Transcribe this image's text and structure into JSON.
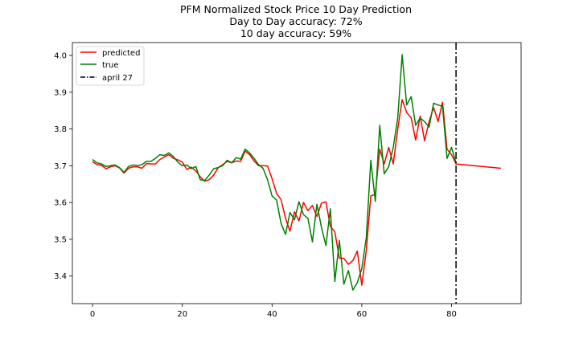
{
  "chart_data": {
    "type": "line",
    "title_lines": [
      "PFM Normalized Stock Price 10 Day Prediction",
      "Day to Day accuracy: 72%",
      "10 day accuracy: 59%"
    ],
    "xlabel": "",
    "ylabel": "",
    "xlim": [
      -4.5,
      95.5
    ],
    "ylim": [
      3.325,
      4.035
    ],
    "xticks": [
      0,
      20,
      40,
      60,
      80
    ],
    "yticks": [
      3.4,
      3.5,
      3.6,
      3.7,
      3.8,
      3.9,
      4.0
    ],
    "ytick_labels": [
      "3.4",
      "3.5",
      "3.6",
      "3.7",
      "3.8",
      "3.9",
      "4.0"
    ],
    "grid": false,
    "legend_position": "upper-left",
    "series": [
      {
        "name": "predicted",
        "color": "#ff0000",
        "style": "solid",
        "x": [
          0,
          1,
          2,
          3,
          4,
          5,
          6,
          7,
          8,
          9,
          10,
          11,
          12,
          13,
          14,
          15,
          16,
          17,
          18,
          19,
          20,
          21,
          22,
          23,
          24,
          25,
          26,
          27,
          28,
          29,
          30,
          31,
          32,
          33,
          34,
          35,
          36,
          37,
          38,
          39,
          40,
          41,
          42,
          43,
          44,
          45,
          46,
          47,
          48,
          49,
          50,
          51,
          52,
          53,
          54,
          55,
          56,
          57,
          58,
          59,
          60,
          61,
          62,
          63,
          64,
          65,
          66,
          67,
          68,
          69,
          70,
          71,
          72,
          73,
          74,
          75,
          76,
          77,
          78,
          79,
          80,
          81,
          91
        ],
        "y": [
          3.711,
          3.703,
          3.701,
          3.692,
          3.697,
          3.7,
          3.694,
          3.68,
          3.693,
          3.697,
          3.697,
          3.693,
          3.706,
          3.705,
          3.705,
          3.717,
          3.724,
          3.73,
          3.72,
          3.716,
          3.71,
          3.69,
          3.696,
          3.686,
          3.67,
          3.658,
          3.662,
          3.675,
          3.695,
          3.703,
          3.712,
          3.708,
          3.713,
          3.712,
          3.74,
          3.73,
          3.713,
          3.7,
          3.7,
          3.699,
          3.665,
          3.625,
          3.608,
          3.557,
          3.522,
          3.575,
          3.55,
          3.6,
          3.578,
          3.592,
          3.562,
          3.598,
          3.602,
          3.535,
          3.52,
          3.449,
          3.448,
          3.432,
          3.442,
          3.468,
          3.375,
          3.47,
          3.618,
          3.622,
          3.745,
          3.705,
          3.75,
          3.705,
          3.8,
          3.88,
          3.845,
          3.83,
          3.77,
          3.835,
          3.768,
          3.82,
          3.858,
          3.82,
          3.873,
          3.745,
          3.73,
          3.705,
          3.693
        ]
      },
      {
        "name": "true",
        "color": "#008000",
        "style": "solid",
        "x": [
          0,
          1,
          2,
          3,
          4,
          5,
          6,
          7,
          8,
          9,
          10,
          11,
          12,
          13,
          14,
          15,
          16,
          17,
          18,
          19,
          20,
          21,
          22,
          23,
          24,
          25,
          26,
          27,
          28,
          29,
          30,
          31,
          32,
          33,
          34,
          35,
          36,
          37,
          38,
          39,
          40,
          41,
          42,
          43,
          44,
          45,
          46,
          47,
          48,
          49,
          50,
          51,
          52,
          53,
          54,
          55,
          56,
          57,
          58,
          59,
          60,
          61,
          62,
          63,
          64,
          65,
          66,
          67,
          68,
          69,
          70,
          71,
          72,
          73,
          74,
          75,
          76,
          77,
          78,
          79,
          80,
          81
        ],
        "y": [
          3.717,
          3.708,
          3.705,
          3.698,
          3.7,
          3.702,
          3.695,
          3.682,
          3.698,
          3.702,
          3.7,
          3.703,
          3.712,
          3.712,
          3.72,
          3.73,
          3.728,
          3.735,
          3.725,
          3.71,
          3.7,
          3.702,
          3.692,
          3.698,
          3.662,
          3.66,
          3.675,
          3.692,
          3.695,
          3.7,
          3.715,
          3.708,
          3.722,
          3.718,
          3.745,
          3.735,
          3.72,
          3.703,
          3.693,
          3.662,
          3.618,
          3.607,
          3.543,
          3.513,
          3.573,
          3.553,
          3.602,
          3.567,
          3.557,
          3.493,
          3.595,
          3.533,
          3.483,
          3.583,
          3.385,
          3.497,
          3.378,
          3.415,
          3.362,
          3.382,
          3.42,
          3.505,
          3.715,
          3.603,
          3.81,
          3.678,
          3.698,
          3.75,
          3.83,
          4.002,
          3.865,
          3.888,
          3.81,
          3.83,
          3.82,
          3.805,
          3.87,
          3.865,
          3.862,
          3.72,
          3.75,
          3.708
        ]
      }
    ],
    "vline": {
      "name": "april 27",
      "x": 81,
      "color": "#000000",
      "style": "dashdot"
    }
  }
}
